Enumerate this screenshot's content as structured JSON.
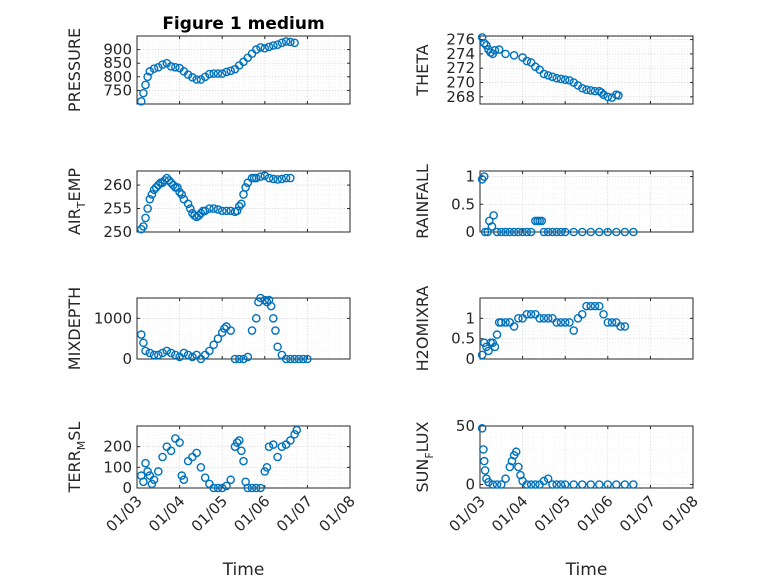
{
  "title": "Figure 1 medium",
  "colors": {
    "marker": "#0072BD",
    "axis": "#262626"
  },
  "x_ticks": [
    "01/03",
    "01/04",
    "01/05",
    "01/06",
    "01/07",
    "01/08"
  ],
  "x_label": "Time",
  "chart_data": [
    {
      "type": "scatter",
      "ylabel": "PRESSURE",
      "ylim": [
        700,
        950
      ],
      "yticks": [
        750,
        800,
        850,
        900
      ],
      "xlim": [
        0,
        5
      ],
      "grid": true,
      "title": "Figure 1 medium",
      "points": [
        [
          0.1,
          710
        ],
        [
          0.15,
          740
        ],
        [
          0.2,
          770
        ],
        [
          0.25,
          800
        ],
        [
          0.3,
          820
        ],
        [
          0.4,
          830
        ],
        [
          0.5,
          835
        ],
        [
          0.6,
          845
        ],
        [
          0.7,
          850
        ],
        [
          0.8,
          838
        ],
        [
          0.9,
          835
        ],
        [
          1.0,
          832
        ],
        [
          1.1,
          820
        ],
        [
          1.2,
          808
        ],
        [
          1.3,
          798
        ],
        [
          1.4,
          790
        ],
        [
          1.5,
          790
        ],
        [
          1.6,
          800
        ],
        [
          1.7,
          810
        ],
        [
          1.8,
          812
        ],
        [
          1.9,
          812
        ],
        [
          2.0,
          812
        ],
        [
          2.1,
          818
        ],
        [
          2.2,
          822
        ],
        [
          2.3,
          828
        ],
        [
          2.4,
          842
        ],
        [
          2.5,
          855
        ],
        [
          2.6,
          870
        ],
        [
          2.7,
          885
        ],
        [
          2.8,
          900
        ],
        [
          2.9,
          908
        ],
        [
          3.0,
          905
        ],
        [
          3.1,
          910
        ],
        [
          3.2,
          915
        ],
        [
          3.3,
          918
        ],
        [
          3.4,
          925
        ],
        [
          3.5,
          930
        ],
        [
          3.6,
          928
        ],
        [
          3.7,
          925
        ]
      ]
    },
    {
      "type": "scatter",
      "ylabel": "THETA",
      "ylim": [
        267,
        276.5
      ],
      "yticks": [
        268,
        270,
        272,
        274,
        276
      ],
      "xlim": [
        0,
        5
      ],
      "grid": true,
      "points": [
        [
          0.05,
          276.3
        ],
        [
          0.1,
          275.5
        ],
        [
          0.15,
          275.2
        ],
        [
          0.2,
          274.6
        ],
        [
          0.25,
          274.2
        ],
        [
          0.3,
          274.0
        ],
        [
          0.35,
          274.5
        ],
        [
          0.45,
          274.6
        ],
        [
          0.6,
          274.0
        ],
        [
          0.8,
          273.8
        ],
        [
          1.0,
          273.5
        ],
        [
          1.1,
          273.0
        ],
        [
          1.2,
          272.8
        ],
        [
          1.3,
          272.2
        ],
        [
          1.4,
          271.8
        ],
        [
          1.5,
          271.2
        ],
        [
          1.6,
          271.0
        ],
        [
          1.7,
          270.8
        ],
        [
          1.8,
          270.6
        ],
        [
          1.9,
          270.5
        ],
        [
          2.0,
          270.4
        ],
        [
          2.1,
          270.3
        ],
        [
          2.2,
          270.0
        ],
        [
          2.3,
          269.6
        ],
        [
          2.4,
          269.2
        ],
        [
          2.5,
          269.0
        ],
        [
          2.6,
          268.9
        ],
        [
          2.7,
          268.8
        ],
        [
          2.8,
          268.8
        ],
        [
          2.85,
          268.6
        ],
        [
          2.9,
          268.3
        ],
        [
          3.0,
          268.0
        ],
        [
          3.1,
          267.9
        ],
        [
          3.2,
          268.3
        ],
        [
          3.25,
          268.2
        ]
      ]
    },
    {
      "type": "scatter",
      "ylabel": "AIR_TEMP",
      "ylim": [
        250,
        263
      ],
      "yticks": [
        250,
        255,
        260
      ],
      "xlim": [
        0,
        5
      ],
      "grid": true,
      "points": [
        [
          0.1,
          250.6
        ],
        [
          0.15,
          251.2
        ],
        [
          0.2,
          253.0
        ],
        [
          0.25,
          255.0
        ],
        [
          0.3,
          257.0
        ],
        [
          0.35,
          258.0
        ],
        [
          0.4,
          259.0
        ],
        [
          0.45,
          259.5
        ],
        [
          0.5,
          260.0
        ],
        [
          0.55,
          260.5
        ],
        [
          0.6,
          260.5
        ],
        [
          0.65,
          261.0
        ],
        [
          0.7,
          261.5
        ],
        [
          0.75,
          261.0
        ],
        [
          0.8,
          260.5
        ],
        [
          0.85,
          260.0
        ],
        [
          0.9,
          259.5
        ],
        [
          0.95,
          259.5
        ],
        [
          1.0,
          258.5
        ],
        [
          1.05,
          258.0
        ],
        [
          1.1,
          257.0
        ],
        [
          1.2,
          256.0
        ],
        [
          1.25,
          255.0
        ],
        [
          1.3,
          254.0
        ],
        [
          1.35,
          253.5
        ],
        [
          1.4,
          253.2
        ],
        [
          1.45,
          253.5
        ],
        [
          1.5,
          254.0
        ],
        [
          1.55,
          254.5
        ],
        [
          1.6,
          254.5
        ],
        [
          1.7,
          255.0
        ],
        [
          1.8,
          255.0
        ],
        [
          1.9,
          254.8
        ],
        [
          2.0,
          254.5
        ],
        [
          2.1,
          254.5
        ],
        [
          2.2,
          254.5
        ],
        [
          2.3,
          254.3
        ],
        [
          2.35,
          254.5
        ],
        [
          2.4,
          255.5
        ],
        [
          2.45,
          256.0
        ],
        [
          2.5,
          258.0
        ],
        [
          2.55,
          259.5
        ],
        [
          2.6,
          260.5
        ],
        [
          2.7,
          261.5
        ],
        [
          2.75,
          261.5
        ],
        [
          2.8,
          261.5
        ],
        [
          2.9,
          261.8
        ],
        [
          3.0,
          262.0
        ],
        [
          3.1,
          261.5
        ],
        [
          3.2,
          261.3
        ],
        [
          3.3,
          261.2
        ],
        [
          3.4,
          261.3
        ],
        [
          3.5,
          261.5
        ],
        [
          3.6,
          261.5
        ]
      ]
    },
    {
      "type": "scatter",
      "ylabel": "RAINFALL",
      "ylim": [
        0,
        1.1
      ],
      "yticks": [
        0,
        0.5,
        1
      ],
      "xlim": [
        0,
        5
      ],
      "grid": true,
      "points": [
        [
          0.05,
          0.95
        ],
        [
          0.1,
          1.0
        ],
        [
          0.12,
          0.0
        ],
        [
          0.18,
          0.0
        ],
        [
          0.22,
          0.2
        ],
        [
          0.28,
          0.1
        ],
        [
          0.32,
          0.3
        ],
        [
          0.4,
          0.0
        ],
        [
          0.5,
          0.0
        ],
        [
          0.6,
          0.0
        ],
        [
          0.7,
          0.0
        ],
        [
          0.8,
          0.0
        ],
        [
          0.9,
          0.0
        ],
        [
          1.0,
          0.0
        ],
        [
          1.1,
          0.0
        ],
        [
          1.2,
          0.0
        ],
        [
          1.3,
          0.2
        ],
        [
          1.35,
          0.2
        ],
        [
          1.4,
          0.2
        ],
        [
          1.45,
          0.2
        ],
        [
          1.5,
          0.0
        ],
        [
          1.6,
          0.0
        ],
        [
          1.7,
          0.0
        ],
        [
          1.8,
          0.0
        ],
        [
          1.9,
          0.0
        ],
        [
          2.0,
          0.0
        ],
        [
          2.2,
          0.0
        ],
        [
          2.4,
          0.0
        ],
        [
          2.6,
          0.0
        ],
        [
          2.8,
          0.0
        ],
        [
          3.0,
          0.0
        ],
        [
          3.2,
          0.0
        ],
        [
          3.4,
          0.0
        ],
        [
          3.6,
          0.0
        ]
      ]
    },
    {
      "type": "scatter",
      "ylabel": "MIXDEPTH",
      "ylim": [
        0,
        1500
      ],
      "yticks": [
        0,
        1000
      ],
      "xlim": [
        0,
        5
      ],
      "grid": true,
      "points": [
        [
          0.1,
          600
        ],
        [
          0.15,
          400
        ],
        [
          0.2,
          200
        ],
        [
          0.3,
          150
        ],
        [
          0.4,
          100
        ],
        [
          0.5,
          100
        ],
        [
          0.6,
          150
        ],
        [
          0.7,
          200
        ],
        [
          0.8,
          150
        ],
        [
          0.9,
          100
        ],
        [
          1.0,
          50
        ],
        [
          1.1,
          150
        ],
        [
          1.2,
          100
        ],
        [
          1.3,
          50
        ],
        [
          1.4,
          100
        ],
        [
          1.5,
          0
        ],
        [
          1.6,
          100
        ],
        [
          1.7,
          200
        ],
        [
          1.8,
          350
        ],
        [
          1.9,
          500
        ],
        [
          2.0,
          650
        ],
        [
          2.05,
          750
        ],
        [
          2.1,
          800
        ],
        [
          2.2,
          700
        ],
        [
          2.3,
          0
        ],
        [
          2.4,
          0
        ],
        [
          2.5,
          0
        ],
        [
          2.6,
          50
        ],
        [
          2.7,
          700
        ],
        [
          2.8,
          1000
        ],
        [
          2.85,
          1400
        ],
        [
          2.9,
          1500
        ],
        [
          3.0,
          1450
        ],
        [
          3.05,
          1400
        ],
        [
          3.1,
          1450
        ],
        [
          3.15,
          1300
        ],
        [
          3.2,
          1000
        ],
        [
          3.25,
          700
        ],
        [
          3.3,
          300
        ],
        [
          3.4,
          100
        ],
        [
          3.5,
          0
        ],
        [
          3.6,
          0
        ],
        [
          3.7,
          0
        ],
        [
          3.8,
          0
        ],
        [
          3.9,
          0
        ],
        [
          4.0,
          0
        ]
      ]
    },
    {
      "type": "scatter",
      "ylabel": "H2OMIXRA",
      "ylim": [
        0,
        1.5
      ],
      "yticks": [
        0,
        0.5,
        1
      ],
      "xlim": [
        0,
        5
      ],
      "grid": true,
      "points": [
        [
          0.05,
          0.1
        ],
        [
          0.1,
          0.4
        ],
        [
          0.15,
          0.3
        ],
        [
          0.2,
          0.2
        ],
        [
          0.25,
          0.4
        ],
        [
          0.3,
          0.4
        ],
        [
          0.35,
          0.3
        ],
        [
          0.4,
          0.6
        ],
        [
          0.45,
          0.9
        ],
        [
          0.5,
          0.9
        ],
        [
          0.6,
          0.9
        ],
        [
          0.7,
          0.9
        ],
        [
          0.8,
          0.8
        ],
        [
          0.9,
          1.0
        ],
        [
          1.0,
          1.0
        ],
        [
          1.1,
          1.1
        ],
        [
          1.2,
          1.1
        ],
        [
          1.3,
          1.1
        ],
        [
          1.4,
          1.0
        ],
        [
          1.5,
          1.0
        ],
        [
          1.6,
          1.0
        ],
        [
          1.7,
          1.0
        ],
        [
          1.8,
          0.9
        ],
        [
          1.9,
          0.9
        ],
        [
          2.0,
          0.9
        ],
        [
          2.1,
          0.9
        ],
        [
          2.2,
          0.7
        ],
        [
          2.3,
          1.0
        ],
        [
          2.4,
          1.1
        ],
        [
          2.5,
          1.3
        ],
        [
          2.6,
          1.3
        ],
        [
          2.7,
          1.3
        ],
        [
          2.8,
          1.3
        ],
        [
          2.9,
          1.1
        ],
        [
          3.0,
          0.9
        ],
        [
          3.1,
          0.9
        ],
        [
          3.2,
          0.9
        ],
        [
          3.3,
          0.8
        ],
        [
          3.4,
          0.8
        ]
      ]
    },
    {
      "type": "scatter",
      "ylabel": "TERR_MSL",
      "ylim": [
        0,
        300
      ],
      "yticks": [
        0,
        100,
        200
      ],
      "xlim": [
        0,
        5
      ],
      "grid": true,
      "points": [
        [
          0.1,
          60
        ],
        [
          0.15,
          30
        ],
        [
          0.2,
          120
        ],
        [
          0.25,
          80
        ],
        [
          0.3,
          60
        ],
        [
          0.35,
          20
        ],
        [
          0.4,
          40
        ],
        [
          0.5,
          80
        ],
        [
          0.6,
          150
        ],
        [
          0.7,
          200
        ],
        [
          0.8,
          180
        ],
        [
          0.9,
          240
        ],
        [
          1.0,
          220
        ],
        [
          1.05,
          60
        ],
        [
          1.1,
          40
        ],
        [
          1.2,
          130
        ],
        [
          1.3,
          150
        ],
        [
          1.4,
          170
        ],
        [
          1.5,
          100
        ],
        [
          1.6,
          50
        ],
        [
          1.7,
          20
        ],
        [
          1.8,
          0
        ],
        [
          1.9,
          0
        ],
        [
          2.0,
          0
        ],
        [
          2.1,
          10
        ],
        [
          2.2,
          40
        ],
        [
          2.3,
          200
        ],
        [
          2.35,
          220
        ],
        [
          2.4,
          230
        ],
        [
          2.45,
          180
        ],
        [
          2.5,
          130
        ],
        [
          2.55,
          30
        ],
        [
          2.6,
          0
        ],
        [
          2.7,
          0
        ],
        [
          2.8,
          0
        ],
        [
          2.9,
          0
        ],
        [
          3.0,
          80
        ],
        [
          3.05,
          100
        ],
        [
          3.1,
          200
        ],
        [
          3.2,
          210
        ],
        [
          3.3,
          150
        ],
        [
          3.4,
          200
        ],
        [
          3.5,
          210
        ],
        [
          3.6,
          230
        ],
        [
          3.7,
          260
        ],
        [
          3.75,
          280
        ]
      ]
    },
    {
      "type": "scatter",
      "ylabel": "SUN_FLUX",
      "ylim": [
        -3,
        50
      ],
      "yticks": [
        0,
        50
      ],
      "xlim": [
        0,
        5
      ],
      "grid": true,
      "points": [
        [
          0.05,
          48
        ],
        [
          0.08,
          30
        ],
        [
          0.1,
          20
        ],
        [
          0.12,
          12
        ],
        [
          0.15,
          5
        ],
        [
          0.2,
          2
        ],
        [
          0.3,
          0
        ],
        [
          0.4,
          0
        ],
        [
          0.5,
          0
        ],
        [
          0.6,
          5
        ],
        [
          0.7,
          15
        ],
        [
          0.75,
          20
        ],
        [
          0.8,
          25
        ],
        [
          0.85,
          28
        ],
        [
          0.9,
          15
        ],
        [
          0.95,
          8
        ],
        [
          1.0,
          3
        ],
        [
          1.1,
          0
        ],
        [
          1.2,
          0
        ],
        [
          1.3,
          0
        ],
        [
          1.4,
          0
        ],
        [
          1.5,
          3
        ],
        [
          1.6,
          5
        ],
        [
          1.7,
          0
        ],
        [
          1.8,
          0
        ],
        [
          1.9,
          0
        ],
        [
          2.0,
          0
        ],
        [
          2.2,
          0
        ],
        [
          2.4,
          0
        ],
        [
          2.6,
          0
        ],
        [
          2.8,
          0
        ],
        [
          3.0,
          0
        ],
        [
          3.2,
          0
        ],
        [
          3.4,
          0
        ],
        [
          3.6,
          0
        ]
      ]
    }
  ]
}
